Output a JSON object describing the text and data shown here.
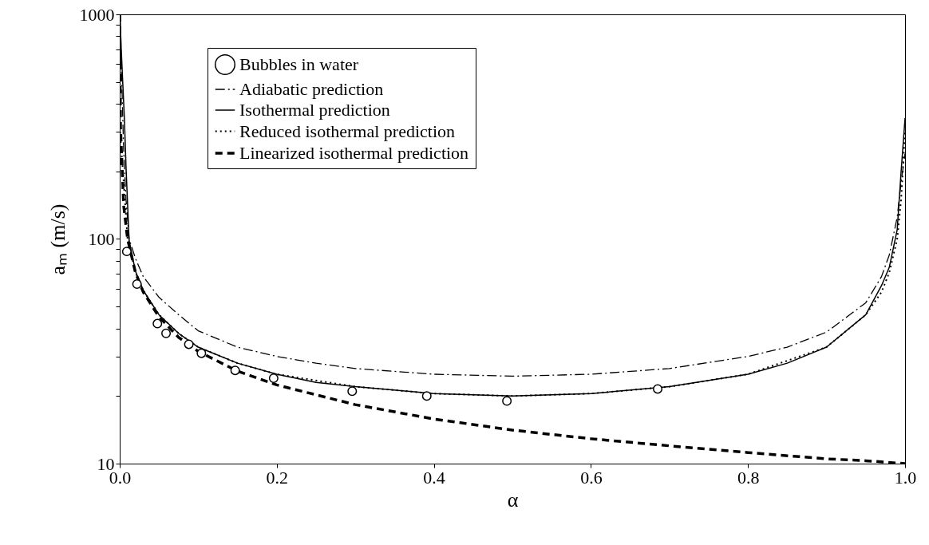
{
  "chart_data": {
    "type": "line",
    "xlabel": "α",
    "ylabel": "aₘ (m/s)",
    "xlim": [
      0,
      1
    ],
    "xticks": [
      {
        "value": 0,
        "label": "0.0"
      },
      {
        "value": 0.2,
        "label": "0.2"
      },
      {
        "value": 0.4,
        "label": "0.4"
      },
      {
        "value": 0.6,
        "label": "0.6"
      },
      {
        "value": 0.8,
        "label": "0.8"
      },
      {
        "value": 1,
        "label": "1.0"
      }
    ],
    "ylim": [
      10,
      1000
    ],
    "yticks": [
      10,
      {
        "value": 20,
        "label": null
      },
      {
        "value": 30,
        "label": null
      },
      {
        "value": 40,
        "label": null
      },
      {
        "value": 50,
        "label": null
      },
      {
        "value": 60,
        "label": null
      },
      {
        "value": 70,
        "label": null
      },
      {
        "value": 80,
        "label": null
      },
      {
        "value": 90,
        "label": null
      },
      100,
      {
        "value": 200,
        "label": null
      },
      {
        "value": 300,
        "label": null
      },
      {
        "value": 400,
        "label": null
      },
      {
        "value": 500,
        "label": null
      },
      {
        "value": 600,
        "label": null
      },
      {
        "value": 700,
        "label": null
      },
      {
        "value": 800,
        "label": null
      },
      {
        "value": 900,
        "label": null
      },
      1000
    ],
    "log": "y",
    "grid": false,
    "legend": "top left",
    "series": [
      {
        "name": "Bubbles in water",
        "type": "scatter",
        "marker": "circle",
        "color": "#000000",
        "x": [
          0.009,
          0.022,
          0.048,
          0.059,
          0.088,
          0.104,
          0.147,
          0.196,
          0.296,
          0.391,
          0.493,
          0.685
        ],
        "values": [
          88,
          63,
          42,
          38,
          34,
          31,
          26,
          24,
          21,
          20,
          19,
          21.5
        ]
      },
      {
        "name": "Adiabatic prediction",
        "line_style": "dashdot",
        "color": "#000000",
        "x": [
          0.0005,
          0.002,
          0.005,
          0.008,
          0.012,
          0.02,
          0.03,
          0.05,
          0.075,
          0.1,
          0.15,
          0.2,
          0.25,
          0.3,
          0.4,
          0.5,
          0.6,
          0.7,
          0.8,
          0.85,
          0.9,
          0.95,
          0.97,
          0.98,
          0.99,
          0.995,
          1
        ],
        "values": [
          950,
          600,
          250,
          150,
          100,
          82,
          68,
          55,
          46,
          39,
          33,
          30,
          28,
          26.5,
          25,
          24.5,
          25,
          26.5,
          30,
          33,
          38.5,
          52,
          68,
          85,
          125,
          180,
          240
        ]
      },
      {
        "name": "Isothermal prediction",
        "line_style": "solid",
        "color": "#000000",
        "x": [
          0.0005,
          0.002,
          0.006,
          0.008,
          0.012,
          0.02,
          0.03,
          0.05,
          0.075,
          0.1,
          0.15,
          0.2,
          0.25,
          0.3,
          0.4,
          0.5,
          0.6,
          0.7,
          0.8,
          0.85,
          0.9,
          0.95,
          0.97,
          0.98,
          0.99,
          0.995,
          1
        ],
        "values": [
          950,
          690,
          340,
          210,
          98,
          72,
          59,
          46,
          38,
          33,
          28,
          25,
          23,
          22,
          20.5,
          20,
          20.5,
          22,
          25,
          28,
          33,
          46,
          62,
          75,
          110,
          200,
          345
        ]
      },
      {
        "name": "Reduced isothermal prediction",
        "line_style": "dotted",
        "color": "#000000",
        "x": [
          0.0005,
          0.002,
          0.005,
          0.01,
          0.02,
          0.03,
          0.05,
          0.075,
          0.1,
          0.15,
          0.2,
          0.3,
          0.4,
          0.5,
          0.6,
          0.7,
          0.8,
          0.9,
          0.95,
          0.97,
          0.98,
          0.99,
          0.995,
          1
        ],
        "values": [
          300,
          250,
          180,
          100,
          71,
          59,
          46,
          38,
          33,
          28,
          25,
          22,
          20.5,
          20,
          20.5,
          22,
          25,
          33,
          46,
          58,
          71,
          100,
          150,
          300
        ]
      },
      {
        "name": "Linearized isothermal prediction",
        "line_style": "dashed",
        "color": "#000000",
        "x": [
          0.0001,
          0.001,
          0.005,
          0.01,
          0.02,
          0.03,
          0.05,
          0.075,
          0.1,
          0.15,
          0.2,
          0.3,
          0.4,
          0.5,
          0.6,
          0.7,
          0.8,
          0.9,
          0.95,
          1
        ],
        "values": [
          1000,
          316,
          141,
          100,
          71,
          58,
          45,
          36.5,
          31.6,
          25.8,
          22.4,
          18.3,
          15.8,
          14.1,
          12.9,
          12,
          11.2,
          10.5,
          10.3,
          10
        ]
      }
    ]
  }
}
